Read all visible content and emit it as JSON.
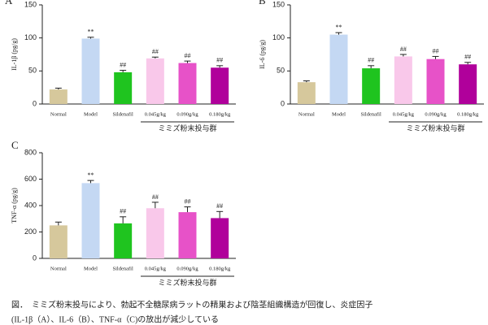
{
  "chart_data": [
    {
      "type": "bar",
      "panel": "A",
      "ylabel": "IL-1β (pg/g)",
      "categories": [
        "Normal",
        "Model",
        "Sildenafil",
        "0.045g/kg",
        "0.090g/kg",
        "0.180g/kg"
      ],
      "values": [
        22,
        99,
        48,
        69,
        62,
        55
      ],
      "errors": [
        2,
        2,
        3,
        2,
        3,
        3
      ],
      "significance": [
        null,
        "**",
        "##",
        "##",
        "##",
        "##"
      ],
      "colors": [
        "#d6c89c",
        "#c4d8f3",
        "#1fc41f",
        "#f9c8ea",
        "#e752c8",
        "#b0009b"
      ],
      "group_label": "ミミズ粉末投与群",
      "ylim": [
        0,
        150
      ],
      "yticks": [
        0,
        50,
        100,
        150
      ]
    },
    {
      "type": "bar",
      "panel": "B",
      "ylabel": "IL-6 (pg/g)",
      "categories": [
        "Normal",
        "Model",
        "Sildenafil",
        "0.045g/kg",
        "0.090g/kg",
        "0.180g/kg"
      ],
      "values": [
        33,
        105,
        54,
        72,
        68,
        60
      ],
      "errors": [
        2,
        3,
        4,
        3,
        4,
        3
      ],
      "significance": [
        null,
        "**",
        "##",
        "##",
        "##",
        "##"
      ],
      "colors": [
        "#d6c89c",
        "#c4d8f3",
        "#1fc41f",
        "#f9c8ea",
        "#e752c8",
        "#b0009b"
      ],
      "group_label": "ミミズ粉末投与群",
      "ylim": [
        0,
        150
      ],
      "yticks": [
        0,
        50,
        100,
        150
      ]
    },
    {
      "type": "bar",
      "panel": "C",
      "ylabel": "TNF-α (pg/g)",
      "categories": [
        "Normal",
        "Model",
        "Sildenafil",
        "0.045g/kg",
        "0.090g/kg",
        "0.180g/kg"
      ],
      "values": [
        250,
        570,
        265,
        380,
        350,
        305
      ],
      "errors": [
        25,
        20,
        50,
        45,
        40,
        50
      ],
      "significance": [
        null,
        "**",
        "##",
        "##",
        "##",
        "##"
      ],
      "colors": [
        "#d6c89c",
        "#c4d8f3",
        "#1fc41f",
        "#f9c8ea",
        "#e752c8",
        "#b0009b"
      ],
      "group_label": "ミミズ粉末投与群",
      "ylim": [
        0,
        800
      ],
      "yticks": [
        0,
        200,
        400,
        600,
        800
      ]
    }
  ],
  "caption": [
    "図．　ミミズ粉末投与により、勃起不全糖尿病ラットの精巣および陰茎組織構造が回復し、炎症因子",
    "(IL-1β（A）、IL-6（B）、TNF-α（C)の放出が減少している"
  ]
}
